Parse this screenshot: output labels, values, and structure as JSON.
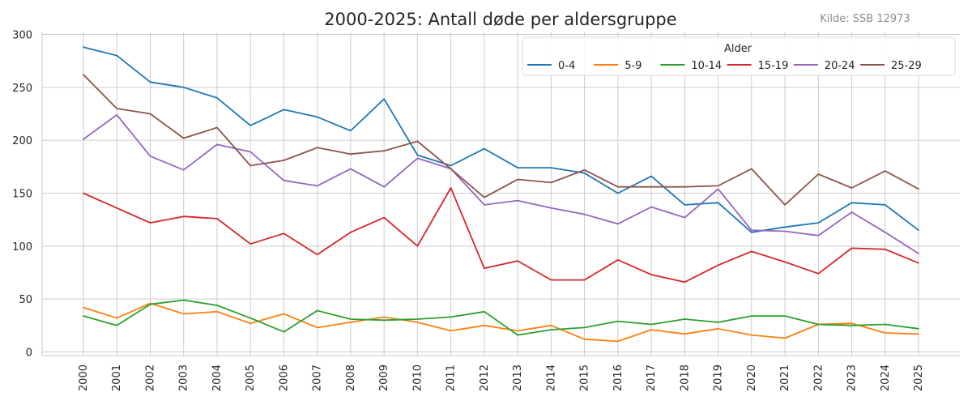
{
  "chart_data": {
    "type": "line",
    "title": "2000-2025: Antall døde per aldersgruppe",
    "source": "Kilde: SSB 12973",
    "xlabel": "",
    "ylabel": "",
    "x": [
      2000,
      2001,
      2002,
      2003,
      2004,
      2005,
      2006,
      2007,
      2008,
      2009,
      2010,
      2011,
      2012,
      2013,
      2014,
      2015,
      2016,
      2017,
      2018,
      2019,
      2020,
      2021,
      2022,
      2023,
      2024,
      2025
    ],
    "ylim": [
      0,
      300
    ],
    "yticks": [
      0,
      50,
      100,
      150,
      200,
      250,
      300
    ],
    "grid": true,
    "legend": {
      "title": "Alder",
      "placement": "top-right"
    },
    "series": [
      {
        "name": "0-4",
        "color": "#1f77b4",
        "values": [
          288,
          280,
          255,
          250,
          240,
          214,
          229,
          222,
          209,
          239,
          186,
          176,
          192,
          174,
          174,
          169,
          150,
          166,
          139,
          141,
          113,
          118,
          122,
          141,
          139,
          115
        ]
      },
      {
        "name": "5-9",
        "color": "#ff7f0e",
        "values": [
          42,
          32,
          46,
          36,
          38,
          27,
          36,
          23,
          28,
          33,
          28,
          20,
          25,
          20,
          25,
          12,
          10,
          21,
          17,
          22,
          16,
          13,
          26,
          27,
          18,
          17
        ]
      },
      {
        "name": "10-14",
        "color": "#2ca02c",
        "values": [
          34,
          25,
          45,
          49,
          44,
          32,
          19,
          39,
          31,
          30,
          31,
          33,
          38,
          16,
          21,
          23,
          29,
          26,
          31,
          28,
          34,
          34,
          26,
          25,
          26,
          22
        ]
      },
      {
        "name": "15-19",
        "color": "#d62728",
        "values": [
          150,
          136,
          122,
          128,
          126,
          102,
          112,
          92,
          113,
          127,
          100,
          155,
          79,
          86,
          68,
          68,
          87,
          73,
          66,
          82,
          95,
          85,
          74,
          98,
          97,
          84
        ]
      },
      {
        "name": "20-24",
        "color": "#9467bd",
        "values": [
          201,
          224,
          185,
          172,
          196,
          189,
          162,
          157,
          173,
          156,
          183,
          173,
          139,
          143,
          136,
          130,
          121,
          137,
          127,
          154,
          115,
          114,
          110,
          132,
          113,
          93
        ]
      },
      {
        "name": "25-29",
        "color": "#8c564b",
        "values": [
          262,
          230,
          225,
          202,
          212,
          176,
          181,
          193,
          187,
          190,
          199,
          173,
          146,
          163,
          160,
          172,
          156,
          156,
          156,
          157,
          173,
          139,
          168,
          155,
          171,
          154
        ]
      }
    ]
  }
}
